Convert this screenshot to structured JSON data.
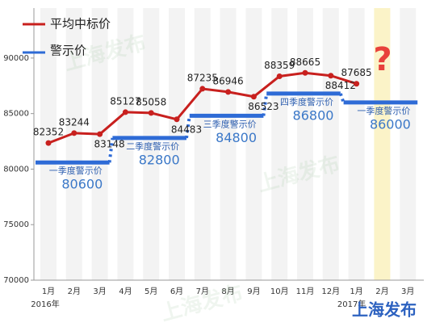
{
  "chart_data": {
    "type": "line",
    "categories": [
      "1月",
      "2月",
      "3月",
      "4月",
      "5月",
      "6月",
      "7月",
      "8月",
      "9月",
      "10月",
      "11月",
      "12月",
      "1月",
      "2月",
      "3月"
    ],
    "year_labels": [
      "2016年",
      "2017年"
    ],
    "series": [
      {
        "name": "平均中标价",
        "color": "#c8201e",
        "values": [
          82352,
          83244,
          83148,
          85127,
          85058,
          84483,
          87235,
          86946,
          86523,
          88359,
          88665,
          88412,
          87685,
          null,
          null
        ]
      }
    ],
    "step_series": {
      "name": "警示价",
      "color": "#2e6bd6",
      "labels": [
        "一季度警示价",
        "二季度警示价",
        "三季度警示价",
        "四季度警示价",
        "一季度警示价"
      ],
      "values": [
        80600,
        82800,
        84800,
        86800,
        86000
      ]
    },
    "ylim": [
      70000,
      94500
    ],
    "yticks": [
      70000,
      75000,
      80000,
      85000,
      90000
    ],
    "annotation": "?",
    "watermark": "上海发布"
  }
}
